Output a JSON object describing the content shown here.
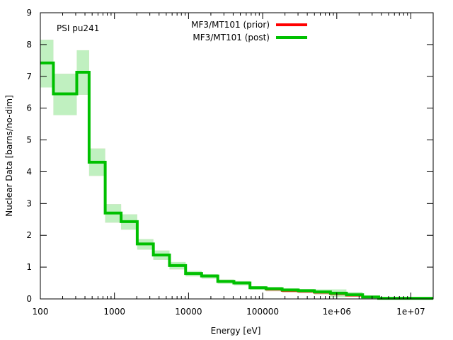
{
  "chart_data": {
    "type": "line",
    "subtype": "step-histogram-with-uncertainty-band",
    "title": "",
    "annotation": "PSI pu241",
    "xlabel": "Energy [eV]",
    "ylabel": "Nuclear Data [barns/no-dim]",
    "xscale": "log",
    "xlim": [
      100,
      20000000
    ],
    "ylim": [
      0,
      9
    ],
    "grid": false,
    "legend_position": "top-center",
    "x_ticks": [
      {
        "value": 100,
        "label": "100"
      },
      {
        "value": 1000,
        "label": "1000"
      },
      {
        "value": 10000,
        "label": "10000"
      },
      {
        "value": 100000,
        "label": "100000"
      },
      {
        "value": 1000000,
        "label": "1e+06"
      },
      {
        "value": 10000000,
        "label": "1e+07"
      }
    ],
    "y_ticks": [
      {
        "value": 0,
        "label": "0"
      },
      {
        "value": 1,
        "label": "1"
      },
      {
        "value": 2,
        "label": "2"
      },
      {
        "value": 3,
        "label": "3"
      },
      {
        "value": 4,
        "label": "4"
      },
      {
        "value": 5,
        "label": "5"
      },
      {
        "value": 6,
        "label": "6"
      },
      {
        "value": 7,
        "label": "7"
      },
      {
        "value": 8,
        "label": "8"
      },
      {
        "value": 9,
        "label": "9"
      }
    ],
    "bin_edges": [
      100,
      150,
      310,
      455,
      750,
      1230,
      2030,
      3350,
      5530,
      9120,
      15000,
      24800,
      40900,
      67400,
      111000,
      183000,
      302000,
      498000,
      821000,
      1350000,
      2230000,
      3680000,
      20000000
    ],
    "series": [
      {
        "name": "MF3/MT101 (prior)",
        "color": "#ff0000",
        "band_color": "#f4b6b6",
        "values": [
          7.42,
          6.45,
          7.13,
          4.3,
          2.7,
          2.43,
          1.73,
          1.38,
          1.05,
          0.8,
          0.72,
          0.55,
          0.5,
          0.35,
          0.3,
          0.26,
          0.24,
          0.2,
          0.16,
          0.11,
          0.06,
          0.02
        ],
        "band_low": [
          6.65,
          5.78,
          6.42,
          3.87,
          2.4,
          2.18,
          1.55,
          1.23,
          0.93,
          0.71,
          0.64,
          0.48,
          0.43,
          0.29,
          0.24,
          0.2,
          0.18,
          0.14,
          0.1,
          0.07,
          0.03,
          0.01
        ],
        "band_high": [
          8.15,
          7.08,
          7.82,
          4.73,
          2.98,
          2.66,
          1.88,
          1.52,
          1.16,
          0.88,
          0.78,
          0.61,
          0.56,
          0.4,
          0.36,
          0.31,
          0.29,
          0.27,
          0.24,
          0.18,
          0.09,
          0.03
        ]
      },
      {
        "name": "MF3/MT101 (post)",
        "color": "#00c000",
        "band_color": "#c0f0c0",
        "values": [
          7.42,
          6.45,
          7.13,
          4.3,
          2.7,
          2.43,
          1.73,
          1.38,
          1.05,
          0.8,
          0.72,
          0.55,
          0.5,
          0.35,
          0.32,
          0.28,
          0.26,
          0.22,
          0.18,
          0.13,
          0.06,
          0.02
        ],
        "band_low": [
          6.65,
          5.78,
          6.42,
          3.87,
          2.4,
          2.18,
          1.55,
          1.23,
          0.93,
          0.71,
          0.64,
          0.48,
          0.43,
          0.29,
          0.26,
          0.22,
          0.2,
          0.15,
          0.06,
          0.08,
          0.03,
          0.01
        ],
        "band_high": [
          8.15,
          7.08,
          7.82,
          4.73,
          2.98,
          2.66,
          1.88,
          1.52,
          1.16,
          0.88,
          0.78,
          0.61,
          0.56,
          0.4,
          0.38,
          0.33,
          0.31,
          0.3,
          0.3,
          0.22,
          0.09,
          0.03
        ]
      }
    ]
  }
}
